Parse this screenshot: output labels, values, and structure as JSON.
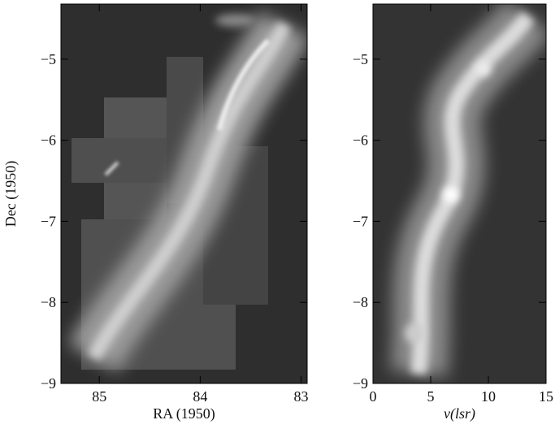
{
  "chart_data": [
    {
      "type": "image",
      "xlabel": "RA (1950)",
      "ylabel": "Dec (1950)",
      "xlim": [
        85.38,
        82.94
      ],
      "xticks": [
        85,
        84,
        83
      ],
      "ylim": [
        -9,
        -4.32
      ],
      "yticks": [
        {
          "value": -9,
          "label": "−9"
        },
        {
          "value": -8,
          "label": "−8"
        },
        {
          "value": -7,
          "label": "−7"
        },
        {
          "value": -6,
          "label": "−6"
        },
        {
          "value": -5,
          "label": "−5"
        }
      ]
    },
    {
      "type": "image",
      "xlabel": "v(lsr)",
      "xlim": [
        0,
        15
      ],
      "xticks": [
        0,
        5,
        10,
        15
      ],
      "ylim": [
        -9,
        -4.32
      ],
      "yticks": [
        {
          "value": -9,
          "label": "−9"
        },
        {
          "value": -8,
          "label": "−8"
        },
        {
          "value": -7,
          "label": "−7"
        },
        {
          "value": -6,
          "label": "−6"
        },
        {
          "value": -5,
          "label": "−5"
        }
      ]
    }
  ]
}
